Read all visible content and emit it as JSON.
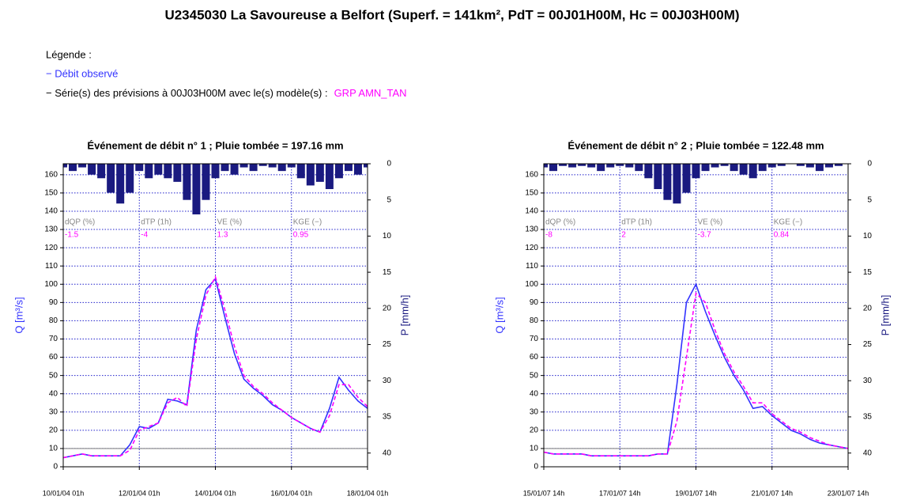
{
  "title": "U2345030 La Savoureuse a Belfort (Superf. = 141km², PdT = 00J01H00M, Hc = 00J03H00M)",
  "legend": {
    "heading": "Légende :",
    "observed": "− Débit observé",
    "forecast": "− Série(s) des prévisions à 00J03H00M avec le(s) modèle(s) :",
    "model": "GRP AMN_TAN",
    "observed_color": "#3333ff",
    "model_color": "#ff00ff"
  },
  "chart_data": [
    {
      "type": "line",
      "title": "Événement de débit n° 1 ; Pluie tombée = 197.16 mm",
      "y_label": "Q [m³/s]",
      "y2_label": "P [mm/h]",
      "x": [
        "10/01/04 01h",
        "10/01/04 07h",
        "10/01/04 13h",
        "10/01/04 19h",
        "11/01/04 01h",
        "11/01/04 07h",
        "11/01/04 13h",
        "11/01/04 19h",
        "12/01/04 01h",
        "12/01/04 07h",
        "12/01/04 13h",
        "12/01/04 19h",
        "13/01/04 01h",
        "13/01/04 07h",
        "13/01/04 13h",
        "13/01/04 19h",
        "14/01/04 01h",
        "14/01/04 07h",
        "14/01/04 13h",
        "14/01/04 19h",
        "15/01/04 01h",
        "15/01/04 07h",
        "15/01/04 13h",
        "15/01/04 19h",
        "16/01/04 01h",
        "16/01/04 07h",
        "16/01/04 13h",
        "16/01/04 19h",
        "17/01/04 01h",
        "17/01/04 07h",
        "17/01/04 13h",
        "17/01/04 19h",
        "18/01/04 01h"
      ],
      "xlim": [
        "10/01/04 01h",
        "18/01/04 01h"
      ],
      "xticks": [
        "10/01/04 01h",
        "12/01/04 01h",
        "14/01/04 01h",
        "16/01/04 01h",
        "18/01/04 01h"
      ],
      "ylim": [
        0,
        166
      ],
      "yticks": [
        0,
        10,
        20,
        30,
        40,
        50,
        60,
        70,
        80,
        90,
        100,
        110,
        120,
        130,
        140,
        150,
        160
      ],
      "y2lim": [
        0,
        41.9
      ],
      "y2ticks": [
        0,
        5,
        10,
        15,
        20,
        25,
        30,
        35,
        40
      ],
      "y2_inverted": true,
      "grid": true,
      "reference_line": 10,
      "series": [
        {
          "color": "#3333ff",
          "values": [
            5,
            6,
            7,
            6,
            6,
            6,
            6,
            12,
            22,
            21,
            24,
            37,
            36,
            34,
            75,
            97,
            103,
            82,
            62,
            48,
            43,
            39,
            34,
            31,
            27,
            24,
            21,
            19,
            32,
            49,
            42,
            36,
            32
          ]
        },
        {
          "color": "#ff00ff",
          "dashed": true,
          "values": [
            5,
            6,
            7,
            6,
            6,
            6,
            6,
            9,
            20,
            22,
            24,
            35,
            38,
            33,
            70,
            94,
            104,
            86,
            66,
            50,
            44,
            40,
            35,
            31,
            27,
            24,
            21,
            19,
            28,
            45,
            45,
            38,
            33
          ]
        },
        {
          "type": "bar",
          "axis": "y2",
          "color": "#1a1a80",
          "values": [
            0.5,
            1,
            0.5,
            1.5,
            2,
            4,
            5.5,
            4,
            1,
            2,
            1.5,
            2,
            2.5,
            5,
            7,
            5,
            2,
            1,
            1.5,
            0.5,
            1,
            0.3,
            0.5,
            1,
            0.5,
            2,
            3,
            2.5,
            3.5,
            2,
            1,
            1.5,
            0.5
          ]
        }
      ],
      "stats": [
        {
          "label": "dQP (%)",
          "value": -1.5
        },
        {
          "label": "dTP (1h)",
          "value": -4
        },
        {
          "label": "VE (%)",
          "value": 1.3
        },
        {
          "label": "KGE (−)",
          "value": 0.95
        }
      ]
    },
    {
      "type": "line",
      "title": "Événement de débit n° 2 ; Pluie tombée = 122.48 mm",
      "y_label": "Q [m³/s]",
      "y2_label": "P [mm/h]",
      "x": [
        "15/01/07 14h",
        "15/01/07 20h",
        "16/01/07 02h",
        "16/01/07 08h",
        "16/01/07 14h",
        "16/01/07 20h",
        "17/01/07 02h",
        "17/01/07 08h",
        "17/01/07 14h",
        "17/01/07 20h",
        "18/01/07 02h",
        "18/01/07 08h",
        "18/01/07 14h",
        "18/01/07 20h",
        "19/01/07 02h",
        "19/01/07 08h",
        "19/01/07 14h",
        "19/01/07 20h",
        "20/01/07 02h",
        "20/01/07 08h",
        "20/01/07 14h",
        "20/01/07 20h",
        "21/01/07 02h",
        "21/01/07 08h",
        "21/01/07 14h",
        "21/01/07 20h",
        "22/01/07 02h",
        "22/01/07 08h",
        "22/01/07 14h",
        "22/01/07 20h",
        "23/01/07 02h",
        "23/01/07 08h",
        "23/01/07 14h"
      ],
      "xlim": [
        "15/01/07 14h",
        "23/01/07 14h"
      ],
      "xticks": [
        "15/01/07 14h",
        "17/01/07 14h",
        "19/01/07 14h",
        "21/01/07 14h",
        "23/01/07 14h"
      ],
      "ylim": [
        0,
        166
      ],
      "yticks": [
        0,
        10,
        20,
        30,
        40,
        50,
        60,
        70,
        80,
        90,
        100,
        110,
        120,
        130,
        140,
        150,
        160
      ],
      "y2lim": [
        0,
        41.9
      ],
      "y2ticks": [
        0,
        5,
        10,
        15,
        20,
        25,
        30,
        35,
        40
      ],
      "y2_inverted": true,
      "grid": true,
      "reference_line": 10,
      "series": [
        {
          "color": "#3333ff",
          "values": [
            8,
            7,
            7,
            7,
            7,
            6,
            6,
            6,
            6,
            6,
            6,
            6,
            7,
            7,
            45,
            90,
            100,
            85,
            72,
            60,
            50,
            42,
            32,
            33,
            28,
            24,
            20,
            18,
            15,
            13,
            12,
            11,
            10
          ]
        },
        {
          "color": "#ff00ff",
          "dashed": true,
          "values": [
            8,
            7,
            7,
            7,
            7,
            6,
            6,
            6,
            6,
            6,
            6,
            6,
            7,
            7,
            25,
            60,
            95,
            90,
            75,
            62,
            52,
            44,
            35,
            35,
            29,
            25,
            21,
            19,
            16,
            14,
            12,
            11,
            10
          ]
        },
        {
          "type": "bar",
          "axis": "y2",
          "color": "#1a1a80",
          "values": [
            0.5,
            1,
            0.3,
            0.5,
            0.3,
            0.5,
            1,
            0.5,
            0.3,
            0.5,
            1,
            2,
            3.5,
            5,
            5.5,
            4,
            2,
            1,
            0.5,
            0.3,
            1,
            1.5,
            2,
            1,
            0.5,
            0.3,
            0,
            0.3,
            0.5,
            1,
            0.5,
            0.3,
            0
          ]
        }
      ],
      "stats": [
        {
          "label": "dQP (%)",
          "value": -8
        },
        {
          "label": "dTP (1h)",
          "value": 2
        },
        {
          "label": "VE (%)",
          "value": -3.7
        },
        {
          "label": "KGE (−)",
          "value": 0.84
        }
      ]
    }
  ]
}
